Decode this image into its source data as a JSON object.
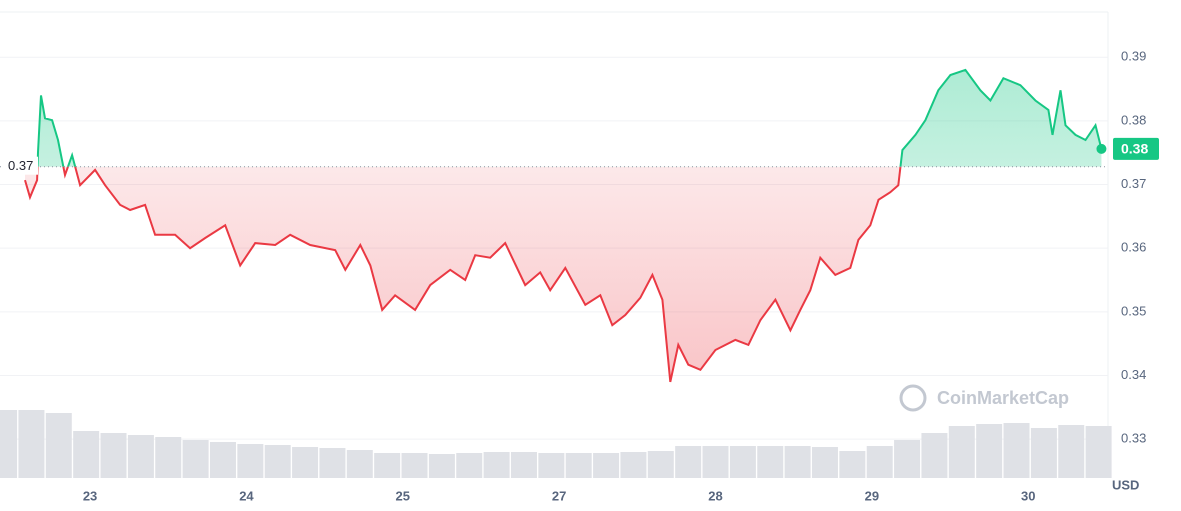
{
  "chart_data": {
    "type": "line",
    "x": [
      -0.416,
      -0.384,
      -0.339,
      -0.333,
      -0.314,
      -0.288,
      -0.243,
      -0.205,
      -0.16,
      -0.115,
      -0.064,
      0.032,
      0.096,
      0.192,
      0.256,
      0.352,
      0.416,
      0.544,
      0.64,
      0.736,
      0.864,
      0.96,
      1.056,
      1.184,
      1.28,
      1.408,
      1.568,
      1.632,
      1.728,
      1.792,
      1.868,
      1.951,
      2.079,
      2.175,
      2.303,
      2.399,
      2.463,
      2.559,
      2.655,
      2.783,
      2.879,
      2.943,
      3.039,
      3.167,
      3.263,
      3.34,
      3.423,
      3.519,
      3.596,
      3.66,
      3.711,
      3.762,
      3.826,
      3.903,
      3.999,
      4.127,
      4.21,
      4.287,
      4.383,
      4.479,
      4.542,
      4.606,
      4.67,
      4.766,
      4.862,
      4.914,
      4.99,
      5.042,
      5.118,
      5.169,
      5.195,
      5.278,
      5.342,
      5.425,
      5.502,
      5.598,
      5.694,
      5.758,
      5.841,
      5.95,
      6.046,
      6.129,
      6.155,
      6.206,
      6.238,
      6.302,
      6.366,
      6.43,
      6.468
    ],
    "series": [
      {
        "values": [
          0.3707,
          0.368,
          0.3707,
          0.3751,
          0.384,
          0.3804,
          0.3801,
          0.377,
          0.3715,
          0.3746,
          0.3699,
          0.3723,
          0.3699,
          0.3668,
          0.366,
          0.3668,
          0.3621,
          0.3621,
          0.36,
          0.3616,
          0.3636,
          0.3573,
          0.3608,
          0.3605,
          0.3621,
          0.3605,
          0.3597,
          0.3566,
          0.3605,
          0.3573,
          0.3503,
          0.3526,
          0.3503,
          0.3542,
          0.3566,
          0.355,
          0.3589,
          0.3585,
          0.3608,
          0.3542,
          0.3562,
          0.3534,
          0.3569,
          0.3511,
          0.3526,
          0.3479,
          0.3495,
          0.3522,
          0.3558,
          0.3519,
          0.339,
          0.3448,
          0.3417,
          0.3409,
          0.344,
          0.3456,
          0.3448,
          0.3487,
          0.3519,
          0.3471,
          0.3503,
          0.3534,
          0.3585,
          0.3558,
          0.3569,
          0.3613,
          0.3636,
          0.3676,
          0.3688,
          0.3699,
          0.3754,
          0.3778,
          0.3801,
          0.3848,
          0.3872,
          0.388,
          0.3848,
          0.3832,
          0.3867,
          0.3856,
          0.3832,
          0.3817,
          0.3778,
          0.3848,
          0.3793,
          0.3778,
          0.377,
          0.3793,
          0.3756
        ]
      }
    ],
    "color_up": "#16c784",
    "color_down": "#ea3943",
    "baseline": {
      "value": 0.3728,
      "label": "0.37"
    },
    "current_price_label": "0.38",
    "volume": {
      "color": "#dfe1e6",
      "x": [
        -0.55,
        -0.375,
        -0.2,
        -0.025,
        0.15,
        0.325,
        0.5,
        0.675,
        0.85,
        1.025,
        1.2,
        1.375,
        1.55,
        1.725,
        1.9,
        2.075,
        2.25,
        2.425,
        2.6,
        2.775,
        2.95,
        3.125,
        3.3,
        3.475,
        3.65,
        3.825,
        4.0,
        4.175,
        4.35,
        4.525,
        4.7,
        4.875,
        5.05,
        5.225,
        5.4,
        5.575,
        5.75,
        5.925,
        6.1,
        6.275,
        6.45
      ],
      "values": [
        68,
        68,
        65,
        47,
        45,
        43,
        41,
        38,
        36,
        34,
        33,
        31,
        30,
        28,
        25,
        25,
        24,
        25,
        26,
        26,
        25,
        25,
        25,
        26,
        27,
        32,
        32,
        32,
        32,
        32,
        31,
        27,
        32,
        38,
        45,
        52,
        54,
        55,
        50,
        53,
        52
      ]
    },
    "xlim": [
      -0.576,
      6.51
    ],
    "xticks": [
      {
        "value": 0,
        "label": "23"
      },
      {
        "value": 1,
        "label": "24"
      },
      {
        "value": 2,
        "label": "25"
      },
      {
        "value": 3,
        "label": "27"
      },
      {
        "value": 4,
        "label": "28"
      },
      {
        "value": 5,
        "label": "29"
      },
      {
        "value": 6,
        "label": "30"
      }
    ],
    "ylim": [
      0.3239,
      0.3971
    ],
    "yticks": [
      0.33,
      0.34,
      0.35,
      0.36,
      0.37,
      0.38,
      0.39
    ],
    "y_unit": "USD",
    "watermark": "CoinMarketCap",
    "grid": true
  }
}
